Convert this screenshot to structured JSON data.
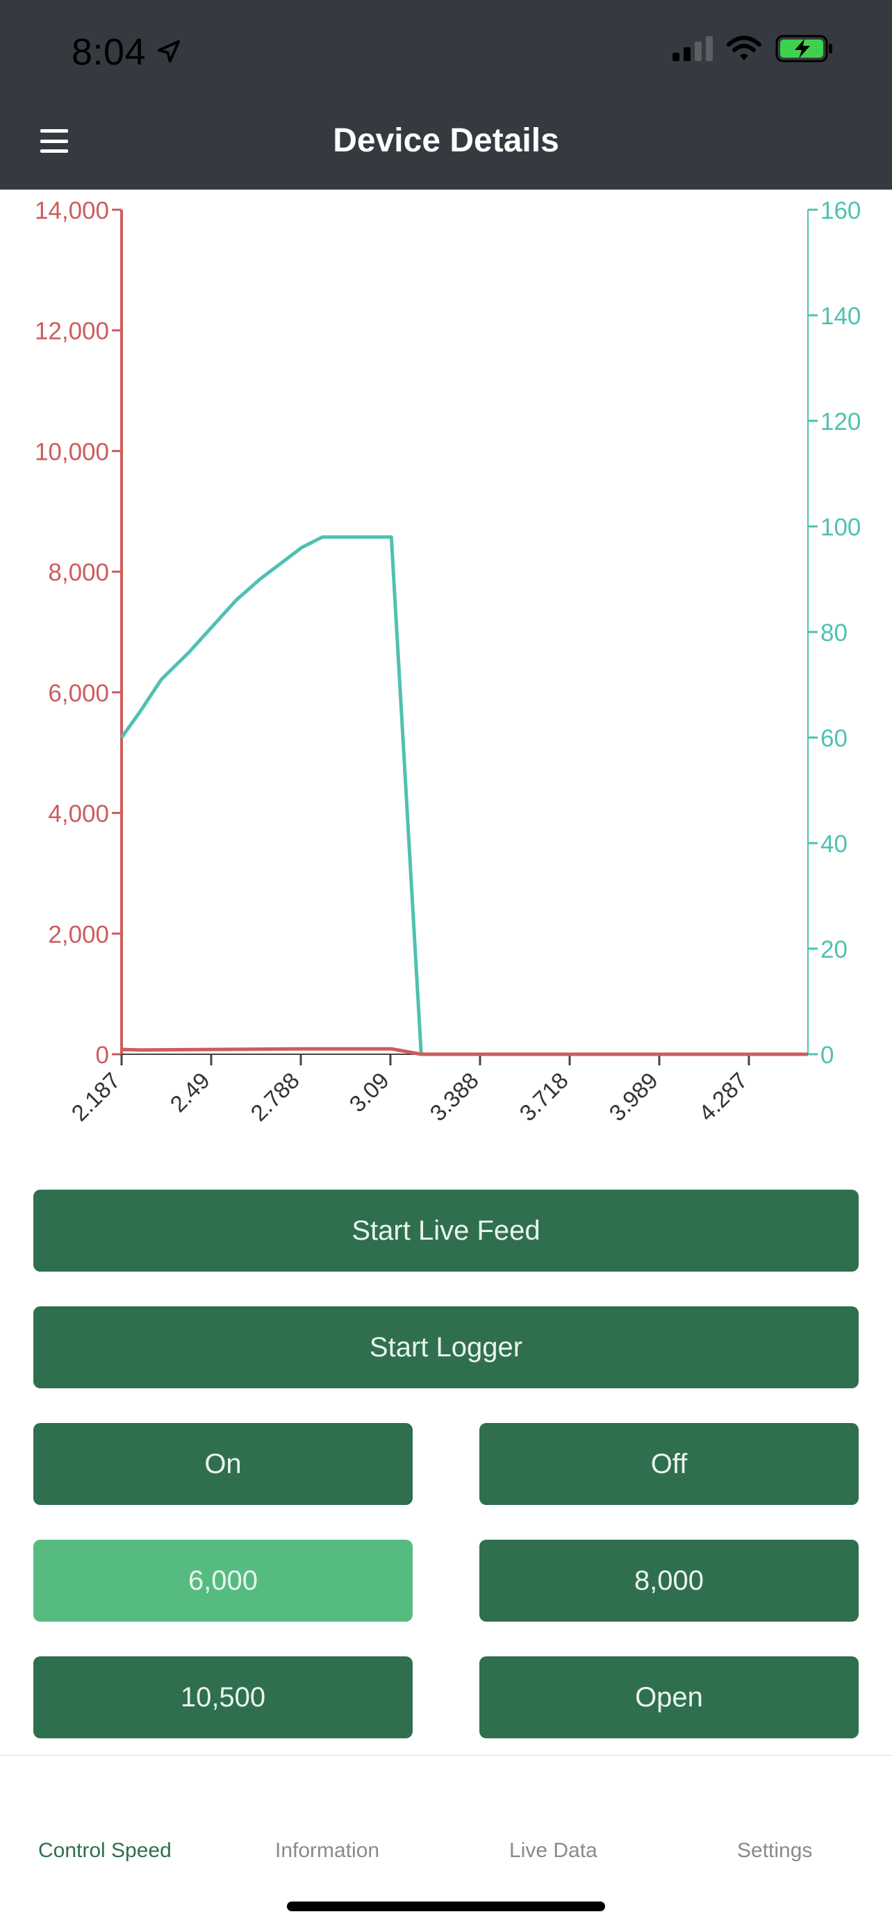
{
  "status_bar": {
    "time": "8:04"
  },
  "header": {
    "title": "Device Details"
  },
  "chart_data": {
    "type": "line",
    "x_ticks": [
      "2.187",
      "2.49",
      "2.788",
      "3.09",
      "3.388",
      "3.718",
      "3.989",
      "4.287"
    ],
    "left_axis": {
      "ticks": [
        "0",
        "2,000",
        "4,000",
        "6,000",
        "8,000",
        "10,000",
        "12,000",
        "14,000"
      ],
      "ylim": [
        0,
        14000
      ],
      "color": "#cd5c5c"
    },
    "right_axis": {
      "ticks": [
        "0",
        "20",
        "40",
        "60",
        "80",
        "100",
        "120",
        "140",
        "160"
      ],
      "ylim": [
        0,
        160
      ],
      "color": "#4fc1b0"
    },
    "series": [
      {
        "axis": "right",
        "color": "#4fc1b0",
        "x": [
          2.187,
          2.25,
          2.32,
          2.41,
          2.49,
          2.57,
          2.65,
          2.72,
          2.79,
          2.86,
          2.92,
          3.0,
          3.09,
          3.19,
          3.39,
          3.72,
          3.99,
          4.29,
          4.5
        ],
        "y": [
          60,
          65,
          71,
          76,
          81,
          86,
          90,
          93,
          96,
          98,
          98,
          98,
          98,
          0,
          0,
          0,
          0,
          0,
          0
        ]
      },
      {
        "axis": "left",
        "color": "#cd5c5c",
        "x": [
          2.187,
          2.25,
          2.49,
          2.79,
          3.09,
          3.19,
          3.39,
          3.72,
          3.99,
          4.29,
          4.5
        ],
        "y": [
          80,
          70,
          80,
          90,
          90,
          0,
          0,
          0,
          0,
          0,
          0
        ]
      }
    ]
  },
  "buttons": {
    "start_live_feed": "Start Live Feed",
    "start_logger": "Start Logger",
    "on": "On",
    "off": "Off",
    "speed_6000": "6,000",
    "speed_8000": "8,000",
    "speed_10500": "10,500",
    "open": "Open"
  },
  "tabs": [
    "Control Speed",
    "Information",
    "Live Data",
    "Settings"
  ],
  "colors": {
    "header_bg": "#363a40",
    "button": "#2f6f4e",
    "button_active": "#56bb80"
  }
}
